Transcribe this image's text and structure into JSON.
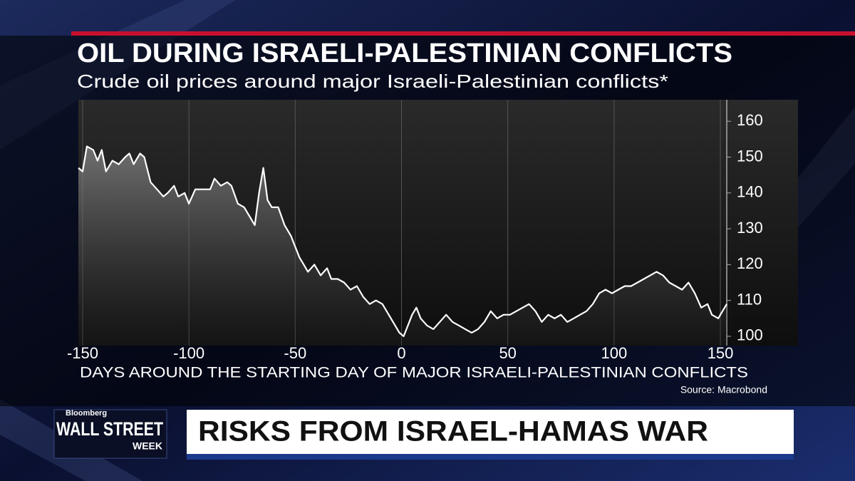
{
  "chart_data": {
    "type": "line",
    "title": "OIL DURING ISRAELI-PALESTINIAN CONFLICTS",
    "subtitle": "Crude oil prices around major Israeli-Palestinian conflicts*",
    "xlabel": "DAYS AROUND THE STARTING DAY OF MAJOR ISRAELI-PALESTINIAN CONFLICTS",
    "source": "Source: Macrobond",
    "x": [
      -152,
      -150,
      -148,
      -145,
      -143,
      -141,
      -139,
      -136,
      -133,
      -130,
      -128,
      -126,
      -123,
      -121,
      -118,
      -115,
      -112,
      -110,
      -107,
      -105,
      -102,
      -100,
      -97,
      -94,
      -90,
      -88,
      -85,
      -82,
      -80,
      -77,
      -74,
      -71,
      -69,
      -67,
      -65,
      -63,
      -61,
      -58,
      -55,
      -52,
      -50,
      -48,
      -46,
      -44,
      -41,
      -38,
      -35,
      -33,
      -30,
      -27,
      -24,
      -21,
      -18,
      -15,
      -12,
      -9,
      -6,
      -3,
      -1,
      1,
      3,
      5,
      7,
      9,
      12,
      15,
      18,
      21,
      24,
      27,
      30,
      33,
      36,
      39,
      42,
      45,
      48,
      51,
      54,
      57,
      60,
      63,
      66,
      69,
      72,
      75,
      78,
      81,
      84,
      87,
      90,
      93,
      96,
      99,
      102,
      105,
      108,
      111,
      114,
      117,
      120,
      123,
      126,
      129,
      132,
      135,
      138,
      141,
      144,
      146,
      149,
      151,
      153
    ],
    "series": [
      {
        "color": "#ffffff",
        "values": [
          147,
          146,
          153,
          152,
          149,
          152,
          146,
          149,
          148,
          150,
          151,
          148,
          151,
          150,
          143,
          141,
          139,
          140,
          142,
          139,
          140,
          137,
          141,
          141,
          141,
          144,
          142,
          143,
          142,
          137,
          136,
          133,
          131,
          140,
          147,
          138,
          136,
          136,
          131,
          128,
          125,
          122,
          120,
          118,
          120,
          117,
          119,
          116,
          116,
          115,
          113,
          114,
          111,
          109,
          110,
          109,
          106,
          103,
          101,
          100,
          103,
          106,
          108,
          105,
          103,
          102,
          104,
          106,
          104,
          103,
          102,
          101,
          102,
          104,
          107,
          105,
          106,
          106,
          107,
          108,
          109,
          107,
          104,
          106,
          105,
          106,
          104,
          105,
          106,
          107,
          109,
          112,
          113,
          112,
          113,
          114,
          114,
          115,
          116,
          117,
          118,
          117,
          115,
          114,
          113,
          115,
          112,
          108,
          109,
          106,
          105,
          107,
          109
        ]
      }
    ],
    "xlim": [
      -152,
      153
    ],
    "xticks": [
      -150,
      -100,
      -50,
      0,
      50,
      100,
      150
    ],
    "ylim": [
      97.4,
      166
    ],
    "yticks": [
      100,
      110,
      120,
      130,
      140,
      150,
      160
    ],
    "grid": "x"
  },
  "broadcast": {
    "brand": "Bloomberg",
    "show": "WALL STREET",
    "show_suffix": "WEEK",
    "headline": "RISKS FROM ISRAEL-HAMAS WAR"
  }
}
